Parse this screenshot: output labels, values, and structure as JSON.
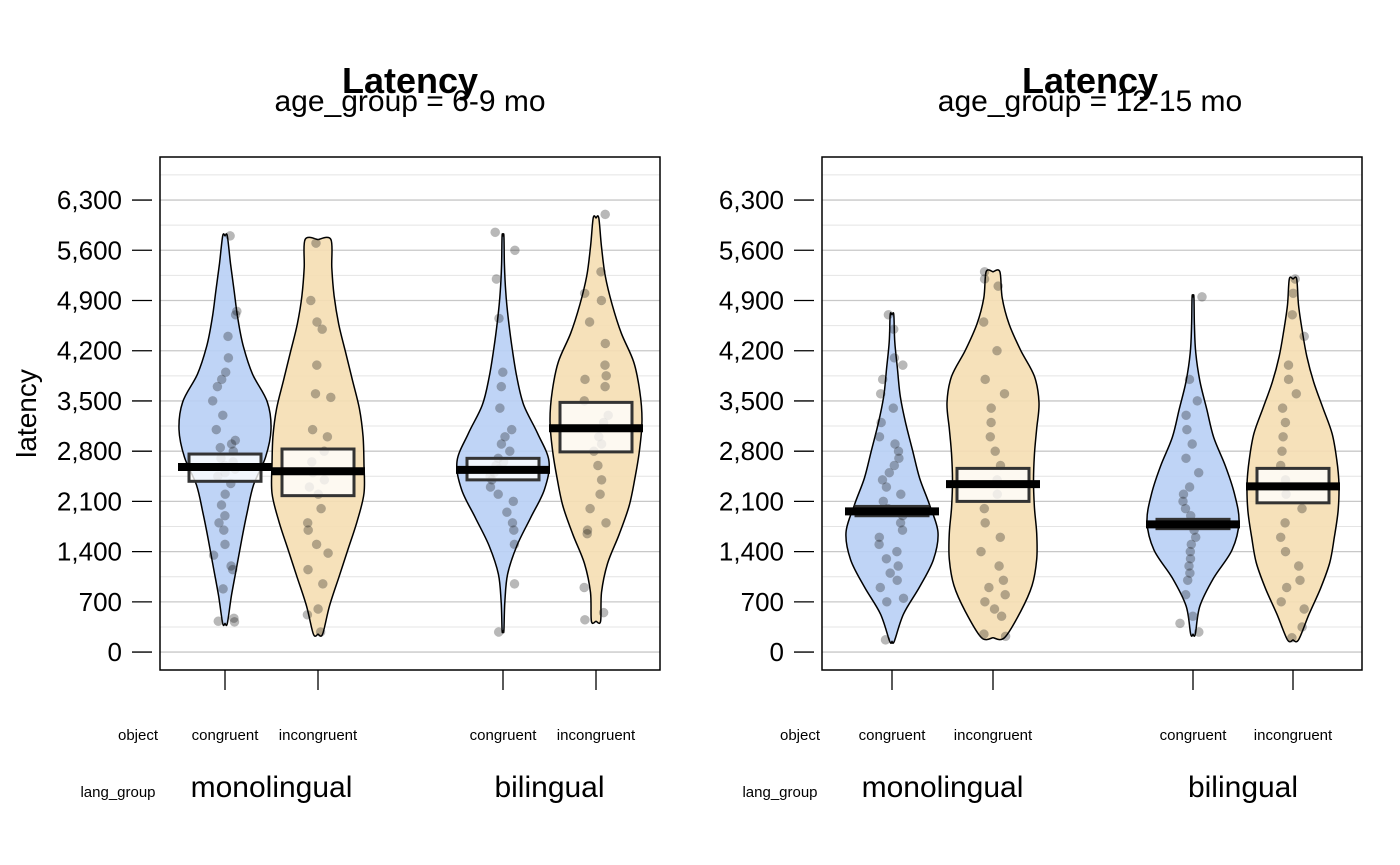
{
  "chart_data": [
    {
      "type": "violin",
      "title": "Latency",
      "subtitle": "age_group = 6-9 mo",
      "ylabel": "latency",
      "ylim": [
        -250,
        6900
      ],
      "yticks": [
        "0",
        "700",
        "1,400",
        "2,100",
        "2,800",
        "3,500",
        "4,200",
        "4,900",
        "5,600",
        "6,300"
      ],
      "x_factor_labels": [
        "object",
        "lang_group"
      ],
      "groups": [
        {
          "lang_group": "monolingual",
          "items": [
            {
              "object": "congruent",
              "color": "#b8cff5",
              "mean": 2580,
              "ci": [
                2380,
                2760
              ],
              "range": [
                400,
                5800
              ],
              "widths": [
                0.05,
                0.14,
                0.25,
                0.36,
                0.48,
                0.62,
                0.88,
                1.0,
                0.92,
                0.6,
                0.4,
                0.28,
                0.2,
                0.12,
                0.05
              ],
              "points": [
                420,
                430,
                470,
                880,
                1150,
                1200,
                1350,
                1500,
                1700,
                1800,
                1900,
                2050,
                2200,
                2350,
                2450,
                2500,
                2550,
                2600,
                2650,
                2700,
                2800,
                2850,
                2900,
                2950,
                3100,
                3300,
                3500,
                3700,
                3800,
                3900,
                4100,
                4400,
                4700,
                4750,
                5800
              ]
            },
            {
              "object": "incongruent",
              "color": "#f5deb3",
              "mean": 2520,
              "ci": [
                2180,
                2830
              ],
              "range": [
                250,
                5750
              ],
              "widths": [
                0.1,
                0.25,
                0.45,
                0.65,
                0.85,
                1.0,
                1.0,
                0.98,
                0.9,
                0.75,
                0.6,
                0.45,
                0.35,
                0.3,
                0.28
              ],
              "points": [
                280,
                520,
                600,
                950,
                1150,
                1380,
                1500,
                1700,
                1800,
                2000,
                2200,
                2300,
                2400,
                2500,
                2650,
                2800,
                3000,
                3100,
                3550,
                3600,
                4000,
                4500,
                4600,
                4900,
                5700
              ]
            }
          ]
        },
        {
          "lang_group": "bilingual",
          "items": [
            {
              "object": "congruent",
              "color": "#b8cff5",
              "mean": 2540,
              "ci": [
                2400,
                2700
              ],
              "range": [
                300,
                5800
              ],
              "widths": [
                0.02,
                0.04,
                0.1,
                0.3,
                0.6,
                0.9,
                1.0,
                0.75,
                0.45,
                0.3,
                0.2,
                0.12,
                0.06,
                0.03,
                0.02
              ],
              "points": [
                280,
                950,
                1500,
                1700,
                1800,
                1950,
                2100,
                2200,
                2300,
                2400,
                2450,
                2500,
                2550,
                2600,
                2650,
                2700,
                2800,
                2900,
                3000,
                3100,
                3400,
                3700,
                3900,
                4650,
                5200,
                5600,
                5850
              ]
            },
            {
              "object": "incongruent",
              "color": "#f5deb3",
              "mean": 3120,
              "ci": [
                2790,
                3480
              ],
              "range": [
                430,
                6050
              ],
              "widths": [
                0.1,
                0.12,
                0.25,
                0.5,
                0.72,
                0.85,
                0.95,
                1.0,
                0.95,
                0.82,
                0.55,
                0.35,
                0.2,
                0.12,
                0.06
              ],
              "points": [
                450,
                550,
                900,
                1650,
                1700,
                1800,
                2000,
                2200,
                2400,
                2600,
                2800,
                2900,
                3000,
                3200,
                3300,
                3500,
                3700,
                3800,
                3850,
                4000,
                4300,
                4600,
                4900,
                5000,
                5300,
                6100
              ]
            }
          ]
        }
      ]
    },
    {
      "type": "violin",
      "title": "Latency",
      "subtitle": "age_group = 12-15 mo",
      "ylabel": "",
      "ylim": [
        -250,
        6900
      ],
      "yticks": [
        "0",
        "700",
        "1,400",
        "2,100",
        "2,800",
        "3,500",
        "4,200",
        "4,900",
        "5,600",
        "6,300"
      ],
      "x_factor_labels": [
        "object",
        "lang_group"
      ],
      "groups": [
        {
          "lang_group": "monolingual",
          "items": [
            {
              "object": "congruent",
              "color": "#b8cff5",
              "mean": 1960,
              "ci": [
                1900,
                2030
              ],
              "range": [
                150,
                4700
              ],
              "widths": [
                0.05,
                0.25,
                0.6,
                0.9,
                1.0,
                0.82,
                0.6,
                0.45,
                0.3,
                0.18,
                0.12,
                0.06,
                0.04
              ],
              "points": [
                170,
                700,
                750,
                900,
                1000,
                1100,
                1200,
                1300,
                1400,
                1500,
                1600,
                1700,
                1800,
                1900,
                1950,
                2000,
                2100,
                2200,
                2300,
                2400,
                2500,
                2600,
                2700,
                2800,
                2900,
                3000,
                3200,
                3400,
                3600,
                3800,
                4000,
                4100,
                4500,
                4700
              ]
            },
            {
              "object": "incongruent",
              "color": "#f5deb3",
              "mean": 2340,
              "ci": [
                2100,
                2560
              ],
              "range": [
                200,
                5300
              ],
              "widths": [
                0.25,
                0.6,
                0.85,
                0.95,
                0.95,
                0.9,
                0.88,
                0.9,
                0.95,
                1.0,
                0.9,
                0.6,
                0.35,
                0.2,
                0.15
              ],
              "points": [
                220,
                250,
                500,
                600,
                700,
                800,
                900,
                1000,
                1200,
                1400,
                1600,
                1800,
                2000,
                2200,
                2400,
                2600,
                2800,
                3000,
                3200,
                3400,
                3600,
                3800,
                4200,
                4600,
                5100,
                5200,
                5300
              ]
            }
          ]
        },
        {
          "lang_group": "bilingual",
          "items": [
            {
              "object": "congruent",
              "color": "#b8cff5",
              "mean": 1780,
              "ci": [
                1720,
                1850
              ],
              "range": [
                250,
                4950
              ],
              "widths": [
                0.05,
                0.15,
                0.45,
                0.85,
                1.0,
                0.9,
                0.7,
                0.45,
                0.3,
                0.15,
                0.06,
                0.03,
                0.02
              ],
              "points": [
                280,
                400,
                500,
                800,
                1000,
                1100,
                1200,
                1300,
                1400,
                1500,
                1600,
                1700,
                1800,
                1900,
                2000,
                2100,
                2200,
                2300,
                2500,
                2700,
                2900,
                3100,
                3300,
                3500,
                3800,
                4950
              ]
            },
            {
              "object": "incongruent",
              "color": "#f5deb3",
              "mean": 2310,
              "ci": [
                2080,
                2560
              ],
              "range": [
                170,
                5200
              ],
              "widths": [
                0.12,
                0.35,
                0.6,
                0.8,
                0.9,
                0.98,
                1.0,
                0.95,
                0.85,
                0.65,
                0.45,
                0.3,
                0.2,
                0.12,
                0.08
              ],
              "points": [
                200,
                350,
                600,
                700,
                900,
                1000,
                1200,
                1400,
                1600,
                1800,
                2000,
                2200,
                2400,
                2600,
                2800,
                3000,
                3200,
                3400,
                3600,
                3800,
                4000,
                4400,
                4700,
                5000,
                5200
              ]
            }
          ]
        }
      ]
    }
  ]
}
